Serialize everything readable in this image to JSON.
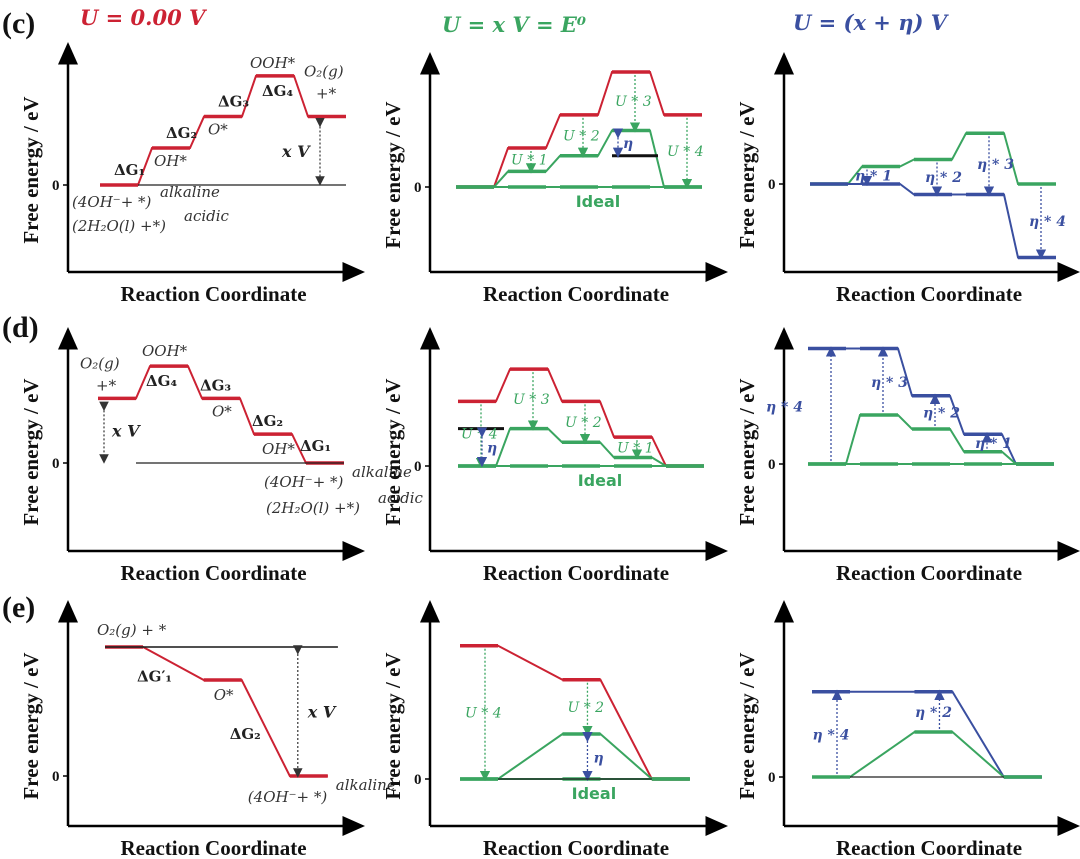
{
  "figure": {
    "colors": {
      "red": "#cc2233",
      "green": "#3aa560",
      "blue": "#3a4fa0",
      "black": "#111111",
      "axis": "#000000"
    },
    "column_titles": [
      "U = 0.00 V",
      "U = x V = E⁰",
      "U = (x + η) V"
    ],
    "ylabel": "Free energy / eV",
    "xlabel": "Reaction Coordinate",
    "zero_tick": "0",
    "ideal_label": "Ideal",
    "row_letters": [
      "(c)",
      "(d)",
      "(e)"
    ]
  },
  "chart_data": [
    {
      "id": "c-left",
      "type": "line",
      "title": "U = 0.00 V",
      "xlabel": "Reaction Coordinate",
      "ylabel": "Free energy / eV",
      "ylim": [
        -2.6,
        3.6
      ],
      "series": [
        {
          "name": "U=0",
          "color": "red",
          "levels": [
            0,
            1.0,
            1.85,
            2.95,
            1.85
          ]
        },
        {
          "name": "baseline",
          "color": "black",
          "thin": true,
          "levels": [
            0,
            0,
            0,
            0,
            0
          ]
        }
      ],
      "labels": {
        "species": [
          "(4OH⁻+ *)alkaline",
          "(2H₂O(l) +*)acidic",
          "OH*",
          "O*",
          "OOH*",
          "O₂(g)",
          "+*"
        ],
        "steps": [
          "ΔG₁",
          "ΔG₂",
          "ΔG₃",
          "ΔG₄"
        ],
        "potential": "x V"
      }
    },
    {
      "id": "c-mid",
      "type": "line",
      "title": "U = x V = E⁰",
      "ylim": [
        -2.6,
        3.6
      ],
      "series": [
        {
          "name": "U=0",
          "color": "red",
          "levels": [
            0,
            1.0,
            1.85,
            2.95,
            1.85
          ]
        },
        {
          "name": "U=E0",
          "color": "green",
          "levels": [
            0,
            0.4,
            0.8,
            1.45,
            0
          ]
        },
        {
          "name": "ideal",
          "color": "green",
          "levels": [
            0,
            0,
            0,
            0,
            0
          ]
        },
        {
          "name": "reference",
          "color": "black",
          "levels": [
            null,
            null,
            null,
            0.8,
            null
          ]
        }
      ],
      "annotations": [
        "U * 1",
        "U * 2",
        "U * 3",
        "U * 4",
        "η"
      ]
    },
    {
      "id": "c-right",
      "type": "line",
      "title": "U = (x + η) V",
      "ylim": [
        -2.6,
        3.6
      ],
      "series": [
        {
          "name": "U=E0",
          "color": "green",
          "levels": [
            0,
            0.5,
            0.7,
            1.45,
            0
          ]
        },
        {
          "name": "U=x+eta",
          "color": "blue",
          "levels": [
            0,
            0,
            -0.3,
            -0.3,
            -2.1
          ]
        }
      ],
      "annotations": [
        "η * 1",
        "η * 2",
        "η * 3",
        "η * 4"
      ]
    },
    {
      "id": "d-left",
      "type": "line",
      "title": "",
      "ylim": [
        -2.6,
        3.6
      ],
      "series": [
        {
          "name": "U=0",
          "color": "red",
          "levels": [
            1.9,
            2.85,
            1.9,
            0.85,
            0
          ]
        },
        {
          "name": "baseline",
          "color": "black",
          "thin": true,
          "levels": [
            0,
            0,
            0,
            0,
            0
          ]
        }
      ],
      "labels": {
        "species": [
          "O₂(g)",
          "+*",
          "OOH*",
          "O*",
          "OH*",
          "(4OH⁻+ *)alkaline",
          "(2H₂O(l) +*)acidic"
        ],
        "steps": [
          "ΔG₄",
          "ΔG₃",
          "ΔG₂",
          "ΔG₁"
        ],
        "potential": "x V"
      }
    },
    {
      "id": "d-mid",
      "type": "line",
      "ylim": [
        -2.6,
        3.6
      ],
      "series": [
        {
          "name": "U=0",
          "color": "red",
          "levels": [
            1.9,
            2.85,
            1.9,
            0.85,
            0
          ]
        },
        {
          "name": "U=E0",
          "color": "green",
          "levels": [
            0,
            1.1,
            0.7,
            0.25,
            0
          ]
        },
        {
          "name": "ideal",
          "color": "green",
          "levels": [
            0,
            0,
            0,
            0,
            0
          ]
        },
        {
          "name": "reference",
          "color": "black",
          "levels": [
            1.1,
            null,
            null,
            null,
            null
          ]
        }
      ],
      "annotations": [
        "U * 4",
        "U * 3",
        "U * 2",
        "U * 1",
        "η"
      ]
    },
    {
      "id": "d-right",
      "type": "line",
      "ylim": [
        -2.6,
        3.6
      ],
      "series": [
        {
          "name": "U=x+eta",
          "color": "blue",
          "levels": [
            3.3,
            3.3,
            1.95,
            0.85,
            0
          ]
        },
        {
          "name": "U=E0",
          "color": "green",
          "levels": [
            0,
            1.4,
            1.0,
            0.35,
            0
          ]
        },
        {
          "name": "ideal",
          "color": "green",
          "levels": [
            0,
            0,
            0,
            0,
            0
          ]
        }
      ],
      "annotations": [
        "η * 4",
        "η * 3",
        "η * 2",
        "η * 1"
      ]
    },
    {
      "id": "e-left",
      "type": "line",
      "ylim": [
        -2.6,
        4.6
      ],
      "series": [
        {
          "name": "U=0",
          "color": "red",
          "levels": [
            4.3,
            3.2,
            0
          ]
        },
        {
          "name": "reference",
          "color": "black",
          "levels": [
            4.3,
            4.3,
            4.3
          ]
        }
      ],
      "labels": {
        "species": [
          "O₂(g) + *",
          "O*",
          "(4OH⁻+ *)alkaline"
        ],
        "steps": [
          "ΔG′₁",
          "ΔG₂"
        ],
        "potential": "x V"
      }
    },
    {
      "id": "e-mid",
      "type": "line",
      "ylim": [
        -2.6,
        4.6
      ],
      "series": [
        {
          "name": "U=0",
          "color": "red",
          "levels": [
            4.3,
            3.2,
            0
          ]
        },
        {
          "name": "U=E0",
          "color": "green",
          "levels": [
            0,
            1.45,
            0
          ]
        },
        {
          "name": "ideal",
          "color": "green",
          "levels": [
            0,
            0,
            0
          ]
        }
      ],
      "annotations": [
        "U * 4",
        "U * 2",
        "η"
      ]
    },
    {
      "id": "e-right",
      "type": "line",
      "ylim": [
        -2.6,
        4.6
      ],
      "series": [
        {
          "name": "U=x+eta",
          "color": "blue",
          "levels": [
            2.75,
            2.75,
            0
          ]
        },
        {
          "name": "U=E0",
          "color": "green",
          "levels": [
            0,
            1.45,
            0
          ]
        }
      ],
      "annotations": [
        "η * 4",
        "η * 2"
      ]
    }
  ]
}
